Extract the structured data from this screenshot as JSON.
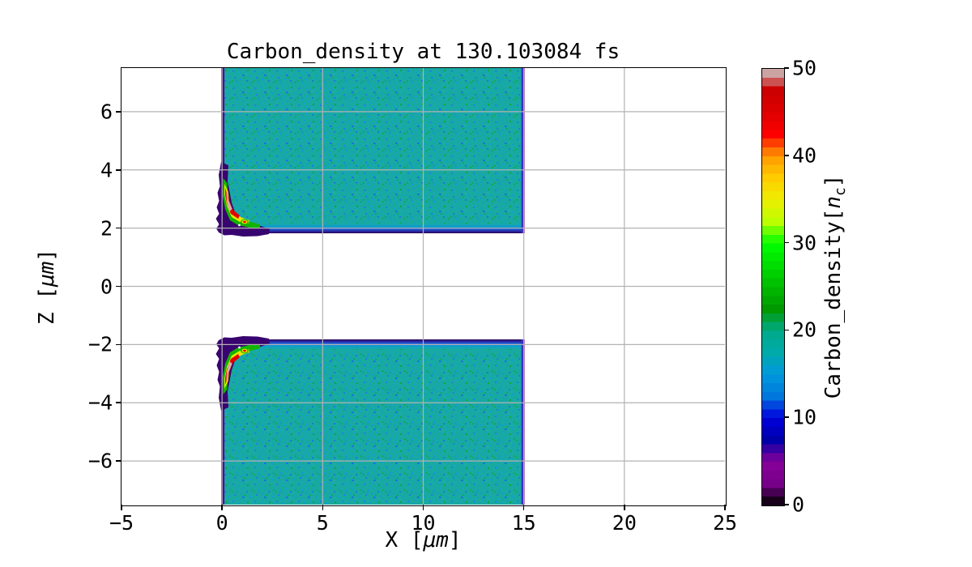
{
  "chart_data": {
    "type": "heatmap",
    "title": "Carbon_density at 130.103084 fs",
    "xlabel": "X [μm]",
    "ylabel": "Z [μm]",
    "labels": {
      "xlabel_pre": "X [",
      "xlabel_unit": "μm",
      "xlabel_post": "]",
      "ylabel_pre": "Z [",
      "ylabel_unit": "μm",
      "ylabel_post": "]"
    },
    "xlim": [
      -5,
      25
    ],
    "ylim": [
      -7.5,
      7.5
    ],
    "xticks": [
      -5,
      0,
      5,
      10,
      15,
      20,
      25
    ],
    "yticks": [
      6,
      4,
      2,
      0,
      -2,
      -4,
      -6
    ],
    "grid": true,
    "grid_color": "#b3b3b3",
    "colorbar": {
      "label_pre": "Carbon_density[",
      "label_italic": "n",
      "label_sub": "c",
      "label_post": "]",
      "ticks": [
        0,
        10,
        20,
        30,
        40,
        50
      ],
      "vmin": 0,
      "vmax": 50,
      "colormap": "nipy_spectral",
      "stops": [
        [
          0.0,
          0,
          0,
          0
        ],
        [
          0.05,
          119,
          0,
          136
        ],
        [
          0.1,
          136,
          0,
          153
        ],
        [
          0.15,
          0,
          0,
          170
        ],
        [
          0.2,
          0,
          0,
          221
        ],
        [
          0.25,
          0,
          119,
          221
        ],
        [
          0.3,
          0,
          153,
          221
        ],
        [
          0.35,
          0,
          170,
          170
        ],
        [
          0.4,
          0,
          170,
          136
        ],
        [
          0.45,
          0,
          153,
          0
        ],
        [
          0.5,
          0,
          187,
          0
        ],
        [
          0.55,
          0,
          221,
          0
        ],
        [
          0.6,
          0,
          255,
          0
        ],
        [
          0.65,
          187,
          255,
          0
        ],
        [
          0.7,
          238,
          238,
          0
        ],
        [
          0.75,
          255,
          204,
          0
        ],
        [
          0.8,
          255,
          153,
          0
        ],
        [
          0.85,
          255,
          0,
          0
        ],
        [
          0.9,
          221,
          0,
          0
        ],
        [
          0.95,
          204,
          0,
          0
        ],
        [
          1.0,
          204,
          204,
          204
        ]
      ]
    },
    "regions": [
      {
        "name": "upper target slab",
        "x_um": [
          0,
          15
        ],
        "z_um": [
          1.8,
          7.5
        ],
        "body_density_nc": 20
      },
      {
        "name": "lower target slab",
        "x_um": [
          0,
          15
        ],
        "z_um": [
          -7.5,
          -1.8
        ],
        "body_density_nc": 20
      },
      {
        "name": "upper slab front-corner compression",
        "x_um": [
          0,
          1.8
        ],
        "z_um": [
          1.8,
          4.2
        ],
        "peak_density_nc": 50
      },
      {
        "name": "lower slab front-corner compression",
        "x_um": [
          0,
          1.8
        ],
        "z_um": [
          -4.2,
          -1.8
        ],
        "peak_density_nc": 50
      }
    ],
    "colors": {
      "slab_body": "#18a9a3",
      "speckle_blue": "#1d7fe0",
      "speckle_green": "#12a53a",
      "edge_purple": "#40058a",
      "edge_right_magenta": "#8a07a8",
      "hot_green": "#12b400",
      "hot_yellow": "#e8e800",
      "hot_red": "#e60000",
      "hot_core_pink": "#d4b0ac"
    }
  }
}
